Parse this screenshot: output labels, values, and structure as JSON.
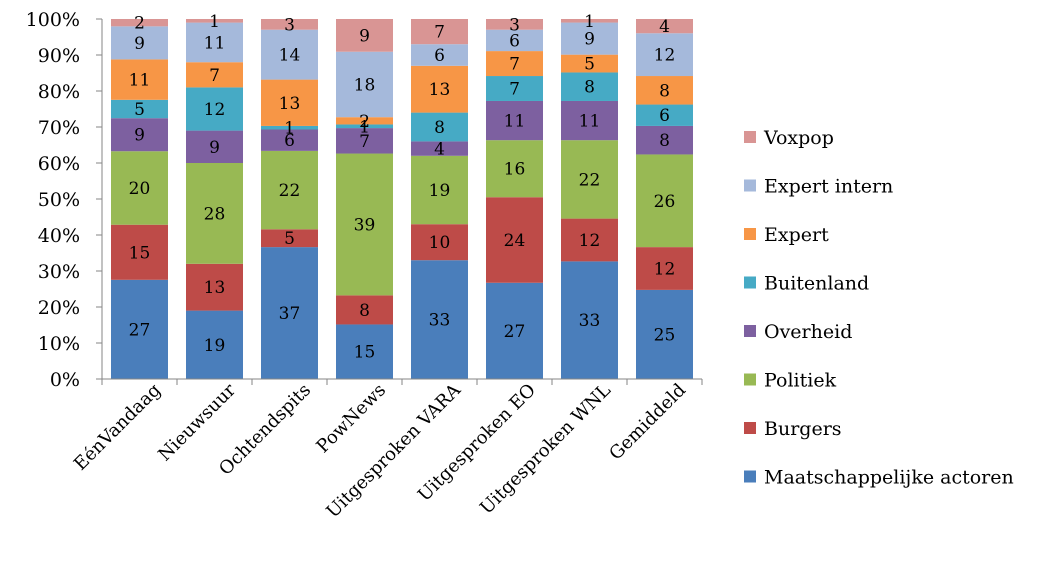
{
  "chart_data": {
    "type": "bar",
    "stacked": "percent",
    "title": "",
    "xlabel": "",
    "ylabel": "",
    "ylim": [
      0,
      100
    ],
    "y_ticks": [
      "0%",
      "10%",
      "20%",
      "30%",
      "40%",
      "50%",
      "60%",
      "70%",
      "80%",
      "90%",
      "100%"
    ],
    "grid": false,
    "legend_position": "right",
    "categories": [
      "EénVandaag",
      "Nieuwsuur",
      "Ochtendspits",
      "PowNews",
      "Uitgesproken VARA",
      "Uitgesproken EO",
      "Uitgesproken WNL",
      "Gemiddeld"
    ],
    "series": [
      {
        "name": "Maatschappelijke actoren",
        "color": "#4a7ebb",
        "values": [
          27,
          19,
          37,
          15,
          33,
          27,
          33,
          25
        ]
      },
      {
        "name": "Burgers",
        "color": "#be4b48",
        "values": [
          15,
          13,
          5,
          8,
          10,
          24,
          12,
          12
        ]
      },
      {
        "name": "Politiek",
        "color": "#98b954",
        "values": [
          20,
          28,
          22,
          39,
          19,
          16,
          22,
          26
        ]
      },
      {
        "name": "Overheid",
        "color": "#7d60a0",
        "values": [
          9,
          9,
          6,
          7,
          4,
          11,
          11,
          8
        ]
      },
      {
        "name": "Buitenland",
        "color": "#46aac5",
        "values": [
          5,
          12,
          1,
          1,
          8,
          7,
          8,
          6
        ]
      },
      {
        "name": "Expert",
        "color": "#f79646",
        "values": [
          11,
          7,
          13,
          2,
          13,
          7,
          5,
          8
        ]
      },
      {
        "name": "Expert intern",
        "color": "#a5b9db",
        "values": [
          9,
          11,
          14,
          18,
          6,
          6,
          9,
          12
        ]
      },
      {
        "name": "Voxpop",
        "color": "#d99594",
        "values": [
          2,
          1,
          3,
          9,
          7,
          3,
          1,
          4
        ]
      }
    ]
  }
}
